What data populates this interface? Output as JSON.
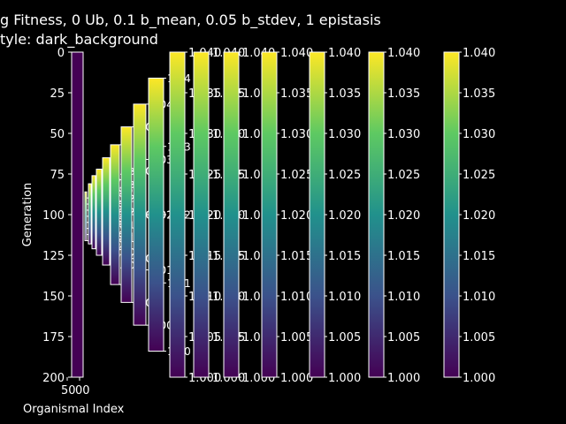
{
  "chart_data": {
    "type": "heatmap",
    "title_lines": [
      "g Fitness, 0 Ub, 0.1 b_mean, 0.05 b_stdev, 1 epistasis",
      "tyle: dark_background"
    ],
    "xlabel": "Organismal Index",
    "ylabel": "Generation",
    "x_tick_labels": [
      "50",
      "00"
    ],
    "y_ticks": [
      0,
      25,
      50,
      75,
      100,
      125,
      150,
      175,
      200
    ],
    "ylim": [
      200,
      0
    ],
    "heatmap_value": 1.0,
    "colormap": [
      "#440154",
      "#3b528b",
      "#21918c",
      "#5ec962",
      "#fde725"
    ],
    "colorbar_range": [
      1.0,
      1.04
    ],
    "colorbars": [
      {
        "range": [
          86,
          116
        ],
        "ticks": [
          "1.035",
          "1.030",
          "1.025",
          "1.020",
          "1.015",
          "1.010",
          "1.005",
          "1.000"
        ]
      },
      {
        "range": [
          81,
          118
        ],
        "ticks": [
          "1.035",
          "1.030",
          "1.025",
          "1.020",
          "1.015",
          "1.010",
          "1.005",
          "1.000"
        ]
      },
      {
        "range": [
          76,
          121
        ],
        "ticks": [
          "1.035",
          "1.030",
          "1.025",
          "1.020",
          "1.015",
          "1.010",
          "1.005",
          "1.000"
        ]
      },
      {
        "range": [
          72,
          125
        ],
        "ticks": [
          "1.035",
          "1.030",
          "1.025",
          "1.020",
          "1.015",
          "1.010",
          "1.005",
          "1.000"
        ]
      },
      {
        "range": [
          65,
          131
        ],
        "ticks": [
          "1.035",
          "1.030",
          "1.025",
          "1.020",
          "1.015",
          "1.010",
          "1.005",
          "1.000"
        ]
      },
      {
        "range": [
          57,
          143
        ],
        "ticks": [
          "1.04",
          "1.03",
          "1.02",
          "1.01",
          "1.00"
        ]
      },
      {
        "range": [
          46,
          154
        ],
        "ticks": [
          "1.04",
          "1.03",
          "1.02",
          "1.01",
          "1.00"
        ]
      },
      {
        "range": [
          32,
          168
        ],
        "ticks": [
          "1.04",
          "1.03",
          "1.02",
          "1.01",
          "1.00"
        ]
      },
      {
        "range": [
          16,
          184
        ],
        "ticks": [
          "1.04",
          "1.03",
          "1.02",
          "1.01",
          "1.00"
        ]
      },
      {
        "range": [
          0,
          200
        ],
        "ticks": [
          "1.040",
          "1.035",
          "1.030",
          "1.025",
          "1.020",
          "1.015",
          "1.010",
          "1.005",
          "1.000"
        ]
      },
      {
        "range": [
          0,
          200
        ],
        "ticks": [
          "1.040",
          "1.035",
          "1.030",
          "1.025",
          "1.020",
          "1.015",
          "1.010",
          "1.005",
          "1.000"
        ]
      },
      {
        "range": [
          0,
          200
        ],
        "ticks": [
          "1.040",
          "1.035",
          "1.030",
          "1.025",
          "1.020",
          "1.015",
          "1.010",
          "1.005",
          "1.000"
        ]
      },
      {
        "range": [
          0,
          200
        ],
        "ticks": [
          "1.040",
          "1.035",
          "1.030",
          "1.025",
          "1.020",
          "1.015",
          "1.010",
          "1.005",
          "1.000"
        ]
      },
      {
        "range": [
          0,
          200
        ],
        "ticks": [
          "1.040",
          "1.035",
          "1.030",
          "1.025",
          "1.020",
          "1.015",
          "1.010",
          "1.005",
          "1.000"
        ]
      },
      {
        "range": [
          0,
          200
        ],
        "ticks": [
          "1.040",
          "1.035",
          "1.030",
          "1.025",
          "1.020",
          "1.015",
          "1.010",
          "1.005",
          "1.000"
        ]
      },
      {
        "range": [
          0,
          200
        ],
        "ticks": [
          "1.040",
          "1.035",
          "1.030",
          "1.025",
          "1.020",
          "1.015",
          "1.010",
          "1.005",
          "1.000"
        ]
      }
    ]
  }
}
